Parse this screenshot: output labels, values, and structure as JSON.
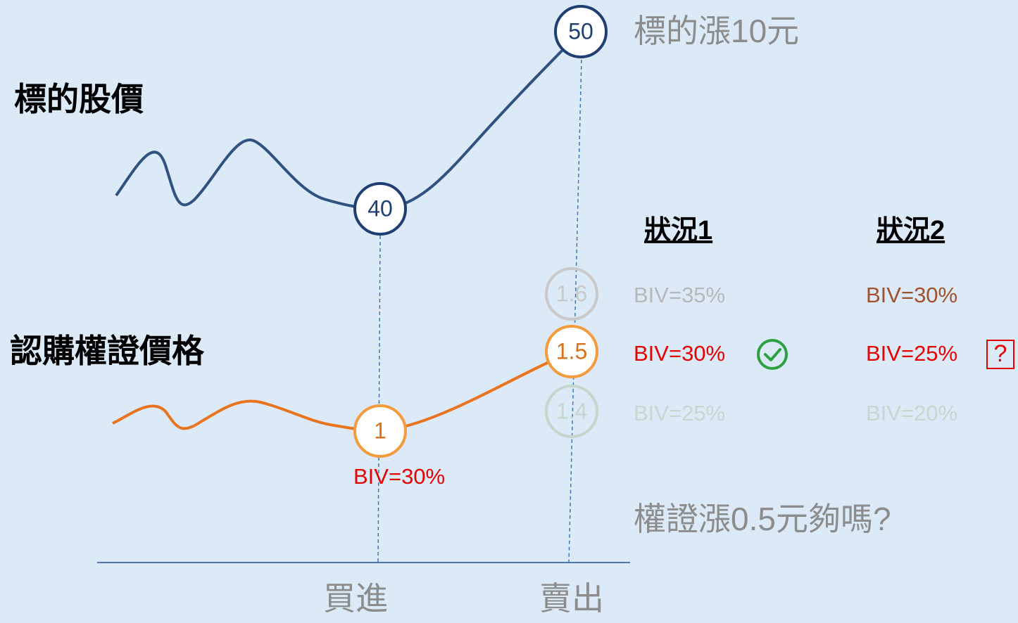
{
  "titles": {
    "stock": "標的股價",
    "warrant": "認購權證價格"
  },
  "stock_nodes": [
    "40",
    "50"
  ],
  "warrant_nodes": {
    "buy": "1",
    "sell": "1.5",
    "up": "1.6",
    "down": "1.4"
  },
  "buy_biv": "BIV=30%",
  "annotations": {
    "stock_rise": "標的漲10元",
    "question": "權證漲0.5元夠嗎?"
  },
  "scenarios": [
    {
      "title": "狀況1",
      "rows": [
        "BIV=35%",
        "BIV=30%",
        "BIV=25%"
      ]
    },
    {
      "title": "狀況2",
      "rows": [
        "BIV=30%",
        "BIV=25%",
        "BIV=20%"
      ]
    }
  ],
  "question_mark": "?",
  "axis_labels": [
    "買進",
    "賣出"
  ]
}
